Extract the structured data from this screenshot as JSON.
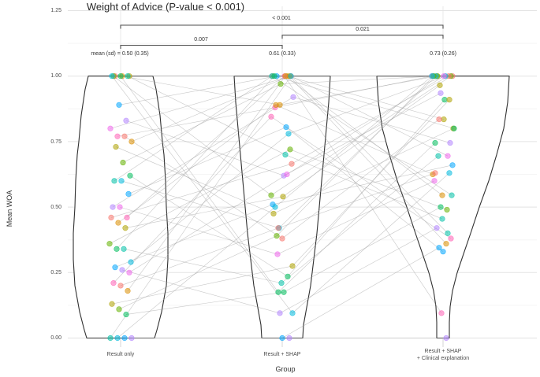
{
  "title": "Weight of Advice (P-value < 0.001)",
  "axes": {
    "y": {
      "label": "Mean WOA",
      "ticks": [
        "1.25",
        "1.00",
        "0.75",
        "0.50",
        "0.25",
        "0.00"
      ],
      "tick_values": [
        1.25,
        1.0,
        0.75,
        0.5,
        0.25,
        0.0
      ]
    },
    "x": {
      "label": "Group",
      "groups": [
        {
          "label": "Result only",
          "label2": ""
        },
        {
          "label": "Result + SHAP",
          "label2": ""
        },
        {
          "label": "Result + SHAP",
          "label2": "+ Clinical explanation"
        }
      ]
    }
  },
  "annotations": {
    "comparisons": [
      {
        "label": "< 0.001",
        "from": 0,
        "to": 2
      },
      {
        "label": "0.021",
        "from": 1,
        "to": 2
      },
      {
        "label": "0.007",
        "from": 0,
        "to": 1
      }
    ],
    "means": [
      "mean (sd) = 0.50 (0.35)",
      "0.61 (0.33)",
      "0.73 (0.26)"
    ]
  },
  "colors": {
    "background": "#ffffff",
    "violin_stroke": "#303030",
    "violin_fill": "#ffffff",
    "connector": "#9a9a9a",
    "grid_major": "#e3e3e3",
    "grid_minor": "#f5f5f5",
    "axis_tick": "#d4d4d4",
    "bracket": "#4d4d4d",
    "text_dark": "#333333",
    "text_gray": "#4d4d4d"
  },
  "chart_data": {
    "type": "violin",
    "subtype": "paired-jittered-dotplot",
    "title": "Weight of Advice (P-value < 0.001)",
    "xlabel": "Group",
    "ylabel": "Mean WOA",
    "ylim": [
      0,
      1.25
    ],
    "grid": true,
    "categories": [
      "Result only",
      "Result + SHAP",
      "Result + SHAP + Clinical explanation"
    ],
    "group_means": [
      0.5,
      0.61,
      0.73
    ],
    "group_sds": [
      0.35,
      0.33,
      0.26
    ],
    "p_values": {
      "overall": "< 0.001",
      "g1_vs_g2": "0.007",
      "g2_vs_g3": "0.021",
      "g1_vs_g3": "< 0.001"
    },
    "palette": [
      "#F8766D",
      "#DB8E00",
      "#AEA200",
      "#64B200",
      "#00BD5C",
      "#00C1A7",
      "#00BADE",
      "#00A6FF",
      "#B385FF",
      "#EF67EB",
      "#FF63B6"
    ],
    "violin_profiles": [
      [
        [
          0,
          43
        ],
        [
          0.03,
          46
        ],
        [
          0.1,
          52
        ],
        [
          0.2,
          58
        ],
        [
          0.3,
          60
        ],
        [
          0.4,
          60
        ],
        [
          0.5,
          58
        ],
        [
          0.6,
          57
        ],
        [
          0.7,
          55
        ],
        [
          0.75,
          53
        ],
        [
          0.85,
          50
        ],
        [
          0.95,
          45
        ],
        [
          1.0,
          41
        ]
      ],
      [
        [
          0,
          26
        ],
        [
          0.05,
          27
        ],
        [
          0.1,
          30
        ],
        [
          0.2,
          36
        ],
        [
          0.3,
          40
        ],
        [
          0.4,
          44
        ],
        [
          0.5,
          47
        ],
        [
          0.6,
          50
        ],
        [
          0.7,
          53
        ],
        [
          0.8,
          56
        ],
        [
          0.9,
          59
        ],
        [
          1.0,
          61
        ]
      ],
      [
        [
          0,
          8
        ],
        [
          0.06,
          8
        ],
        [
          0.12,
          9
        ],
        [
          0.18,
          12
        ],
        [
          0.25,
          18
        ],
        [
          0.33,
          27
        ],
        [
          0.4,
          35
        ],
        [
          0.5,
          46
        ],
        [
          0.6,
          58
        ],
        [
          0.7,
          68
        ],
        [
          0.8,
          77
        ],
        [
          0.9,
          82
        ],
        [
          1.0,
          84
        ]
      ]
    ],
    "subjects": [
      {
        "c": 0,
        "v": [
          1.0,
          1.0,
          1.0
        ]
      },
      {
        "c": 1,
        "v": [
          1.0,
          0.89,
          1.0
        ]
      },
      {
        "c": 2,
        "v": [
          1.0,
          1.0,
          0.835
        ]
      },
      {
        "c": 3,
        "v": [
          1.0,
          0.545,
          1.0
        ]
      },
      {
        "c": 4,
        "v": [
          1.0,
          0.175,
          0.745
        ]
      },
      {
        "c": 5,
        "v": [
          1.0,
          0.7,
          0.455
        ]
      },
      {
        "c": 6,
        "v": [
          1.0,
          0.095,
          0.63
        ]
      },
      {
        "c": 7,
        "v": [
          0.89,
          1.0,
          1.0
        ]
      },
      {
        "c": 8,
        "v": [
          0.83,
          0.62,
          0.935
        ]
      },
      {
        "c": 9,
        "v": [
          0.8,
          1.0,
          0.695
        ]
      },
      {
        "c": 10,
        "v": [
          0.77,
          0.88,
          1.0
        ]
      },
      {
        "c": 0,
        "v": [
          0.77,
          0.38,
          0.835
        ]
      },
      {
        "c": 1,
        "v": [
          0.75,
          1.0,
          0.36
        ]
      },
      {
        "c": 2,
        "v": [
          0.73,
          0.475,
          0.8
        ]
      },
      {
        "c": 3,
        "v": [
          0.67,
          0.97,
          1.0
        ]
      },
      {
        "c": 4,
        "v": [
          0.62,
          0.235,
          0.91
        ]
      },
      {
        "c": 5,
        "v": [
          0.6,
          1.0,
          0.545
        ]
      },
      {
        "c": 6,
        "v": [
          0.6,
          0.42,
          1.0
        ]
      },
      {
        "c": 7,
        "v": [
          0.55,
          0.805,
          0.33
        ]
      },
      {
        "c": 8,
        "v": [
          0.5,
          0.92,
          0.745
        ]
      },
      {
        "c": 9,
        "v": [
          0.5,
          0.32,
          0.6
        ]
      },
      {
        "c": 10,
        "v": [
          0.46,
          1.0,
          0.095
        ]
      },
      {
        "c": 0,
        "v": [
          0.46,
          0.665,
          1.0
        ]
      },
      {
        "c": 1,
        "v": [
          0.44,
          0.89,
          0.625
        ]
      },
      {
        "c": 2,
        "v": [
          0.42,
          0.54,
          0.965
        ]
      },
      {
        "c": 3,
        "v": [
          0.36,
          0.72,
          0.49
        ]
      },
      {
        "c": 4,
        "v": [
          0.34,
          1.0,
          0.8
        ]
      },
      {
        "c": 5,
        "v": [
          0.34,
          0.21,
          0.695
        ]
      },
      {
        "c": 6,
        "v": [
          0.29,
          0.78,
          1.0
        ]
      },
      {
        "c": 7,
        "v": [
          0.27,
          0.51,
          0.66
        ]
      },
      {
        "c": 8,
        "v": [
          0.26,
          0.095,
          0.42
        ]
      },
      {
        "c": 9,
        "v": [
          0.25,
          0.625,
          1.0
        ]
      },
      {
        "c": 10,
        "v": [
          0.21,
          0.845,
          0.38
        ]
      },
      {
        "c": 0,
        "v": [
          0.2,
          0.42,
          0.63
        ]
      },
      {
        "c": 1,
        "v": [
          0.18,
          1.0,
          0.545
        ]
      },
      {
        "c": 2,
        "v": [
          0.13,
          0.275,
          0.91
        ]
      },
      {
        "c": 3,
        "v": [
          0.11,
          0.39,
          1.0
        ]
      },
      {
        "c": 4,
        "v": [
          0.09,
          0.175,
          0.5
        ]
      },
      {
        "c": 5,
        "v": [
          0.0,
          1.0,
          0.4
        ]
      },
      {
        "c": 6,
        "v": [
          0.0,
          0.5,
          1.0
        ]
      },
      {
        "c": 7,
        "v": [
          0.0,
          0.0,
          0.345
        ]
      },
      {
        "c": 8,
        "v": [
          0.0,
          0.0,
          0.0
        ]
      }
    ]
  }
}
